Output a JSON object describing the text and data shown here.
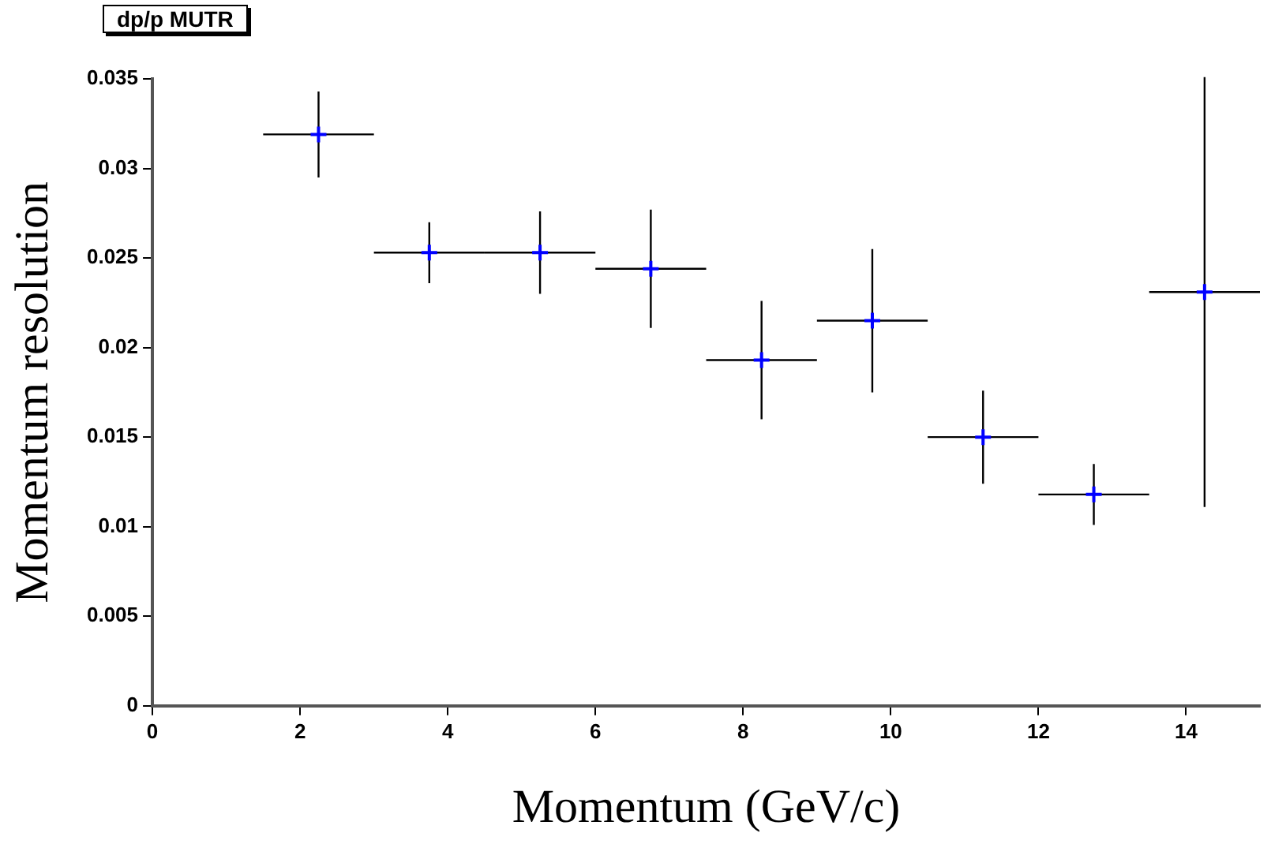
{
  "chart_data": {
    "type": "scatter",
    "title": "dp/p MUTR",
    "xlabel": "Momentum (GeV/c)",
    "ylabel": "Momentum resolution",
    "x": [
      2.25,
      3.75,
      5.25,
      6.75,
      8.25,
      9.75,
      11.25,
      12.75,
      14.25
    ],
    "values": [
      0.0319,
      0.0253,
      0.0253,
      0.0244,
      0.0193,
      0.0215,
      0.015,
      0.0118,
      0.0231
    ],
    "errors": [
      0.0024,
      0.0017,
      0.0023,
      0.0033,
      0.0033,
      0.004,
      0.0026,
      0.0017,
      0.012
    ],
    "xerrors": [
      0.75,
      0.75,
      0.75,
      0.75,
      0.75,
      0.75,
      0.75,
      0.75,
      0.75
    ],
    "color": "#0000ff",
    "marker": "cross",
    "grid": false,
    "legend": false,
    "xlim": [
      0,
      15
    ],
    "xticks": [
      0,
      2,
      4,
      6,
      8,
      10,
      12,
      14
    ],
    "ylim": [
      0,
      0.035
    ],
    "yticks": [
      0,
      0.005,
      0.01,
      0.015,
      0.02,
      0.025,
      0.03,
      0.035
    ]
  }
}
